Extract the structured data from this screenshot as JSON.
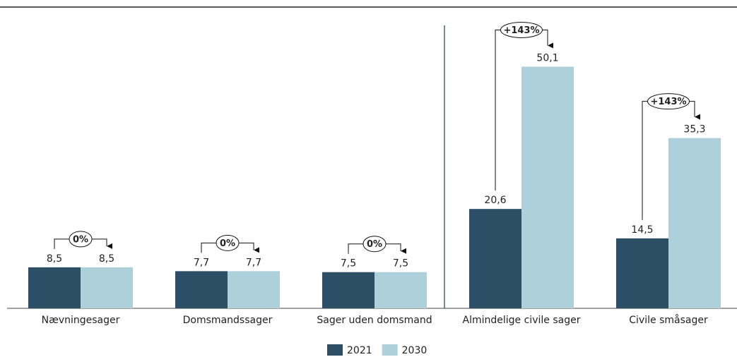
{
  "chart_data": {
    "type": "bar",
    "categories": [
      "Nævningesager",
      "Domsmandssager",
      "Sager uden domsmand",
      "Almindelige civile sager",
      "Civile småsager"
    ],
    "series": [
      {
        "name": "2021",
        "color": "#2d4f65",
        "values": [
          8.5,
          7.7,
          7.5,
          20.6,
          14.5
        ],
        "value_labels": [
          "8,5",
          "7,7",
          "7,5",
          "20,6",
          "14,5"
        ]
      },
      {
        "name": "2030",
        "color": "#aed0db",
        "values": [
          8.5,
          7.7,
          7.5,
          50.1,
          35.3
        ],
        "value_labels": [
          "8,5",
          "7,7",
          "7,5",
          "50,1",
          "35,3"
        ]
      }
    ],
    "annotations": [
      "0%",
      "0%",
      "0%",
      "+143%",
      "+143%"
    ],
    "ylim": [
      0,
      55
    ],
    "legend": "bottom"
  }
}
